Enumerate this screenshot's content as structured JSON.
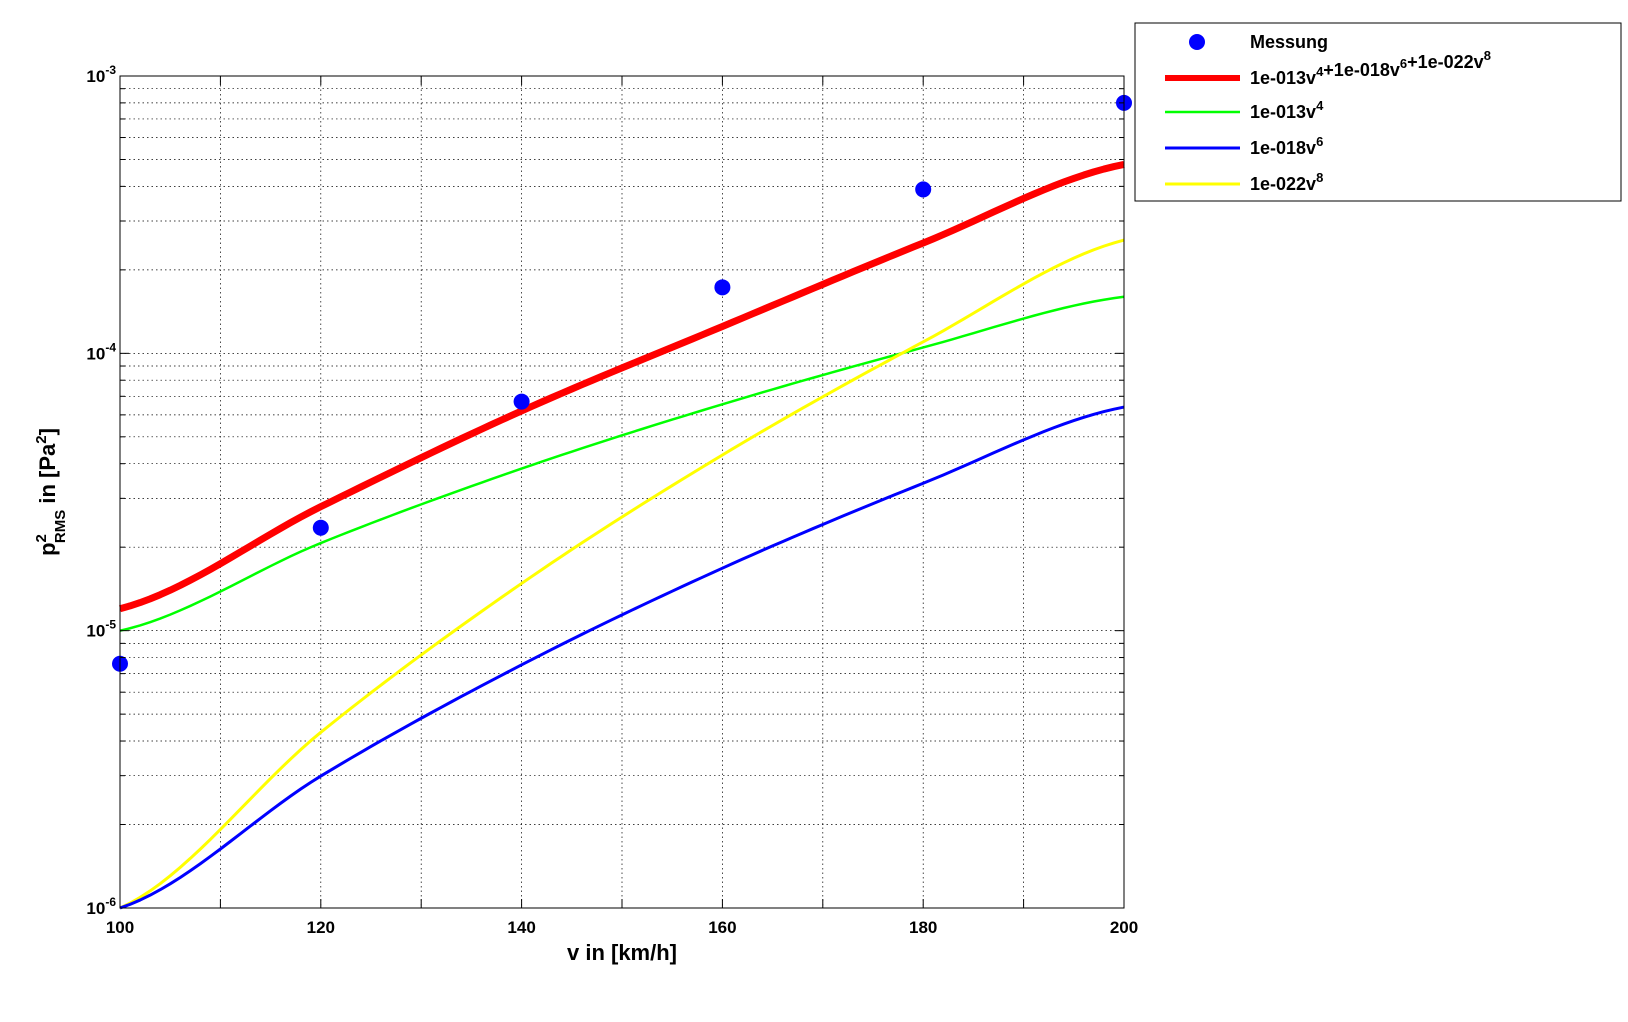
{
  "chart_data": {
    "type": "line",
    "xlabel": "v in [km/h]",
    "ylabel": {
      "base": "p",
      "sup": "2",
      "sub": "RMS",
      "rest": " in [Pa",
      "rest_sup": "2",
      "close": "]"
    },
    "x_scale": "linear",
    "y_scale": "log",
    "xlim": [
      100,
      200
    ],
    "ylim": [
      1e-06,
      0.001
    ],
    "grid": true,
    "legend_position": "outside-top-right",
    "x_ticks": [
      "100",
      "120",
      "140",
      "160",
      "180",
      "200"
    ],
    "y_ticks": [
      {
        "base": "10",
        "exp": "-6"
      },
      {
        "base": "10",
        "exp": "-5"
      },
      {
        "base": "10",
        "exp": "-4"
      },
      {
        "base": "10",
        "exp": "-3"
      }
    ],
    "x": [
      100,
      120,
      140,
      160,
      180,
      200
    ],
    "series": [
      {
        "name": "Messung",
        "kind": "scatter",
        "color": "#0000ff",
        "values": [
          7.6e-06,
          2.35e-05,
          6.7e-05,
          0.000173,
          0.00039,
          0.0008
        ]
      },
      {
        "name": "1e-013v4+1e-018v6+1e-022v8",
        "kind": "line",
        "color": "#ff0000",
        "width": 7,
        "values": [
          1.2e-05,
          2.8e-05,
          6.2e-05,
          0.000125,
          0.00025,
          0.00048
        ]
      },
      {
        "name": "1e-013v4",
        "kind": "line",
        "color": "#00ff00",
        "width": 2.5,
        "values": [
          1e-05,
          2.07e-05,
          3.84e-05,
          6.55e-05,
          0.000105,
          0.00016
        ]
      },
      {
        "name": "1e-018v6",
        "kind": "line",
        "color": "#0000ff",
        "width": 3,
        "values": [
          1e-06,
          2.99e-06,
          7.53e-06,
          1.68e-05,
          3.4e-05,
          6.4e-05
        ]
      },
      {
        "name": "1e-022v8",
        "kind": "line",
        "color": "#ffff00",
        "width": 3,
        "values": [
          1e-06,
          4.3e-06,
          1.48e-05,
          4.3e-05,
          0.00011,
          0.000256
        ]
      }
    ],
    "legend": [
      {
        "series": 0,
        "parts": [
          [
            "Messung",
            ""
          ]
        ]
      },
      {
        "series": 1,
        "parts": [
          [
            "1e-013v",
            "4"
          ],
          [
            "+1e-018v",
            "6"
          ],
          [
            "+1e-022v",
            "8"
          ]
        ]
      },
      {
        "series": 2,
        "parts": [
          [
            "1e-013v",
            "4"
          ]
        ]
      },
      {
        "series": 3,
        "parts": [
          [
            "1e-018v",
            "6"
          ]
        ]
      },
      {
        "series": 4,
        "parts": [
          [
            "1e-022v",
            "8"
          ]
        ]
      }
    ]
  }
}
